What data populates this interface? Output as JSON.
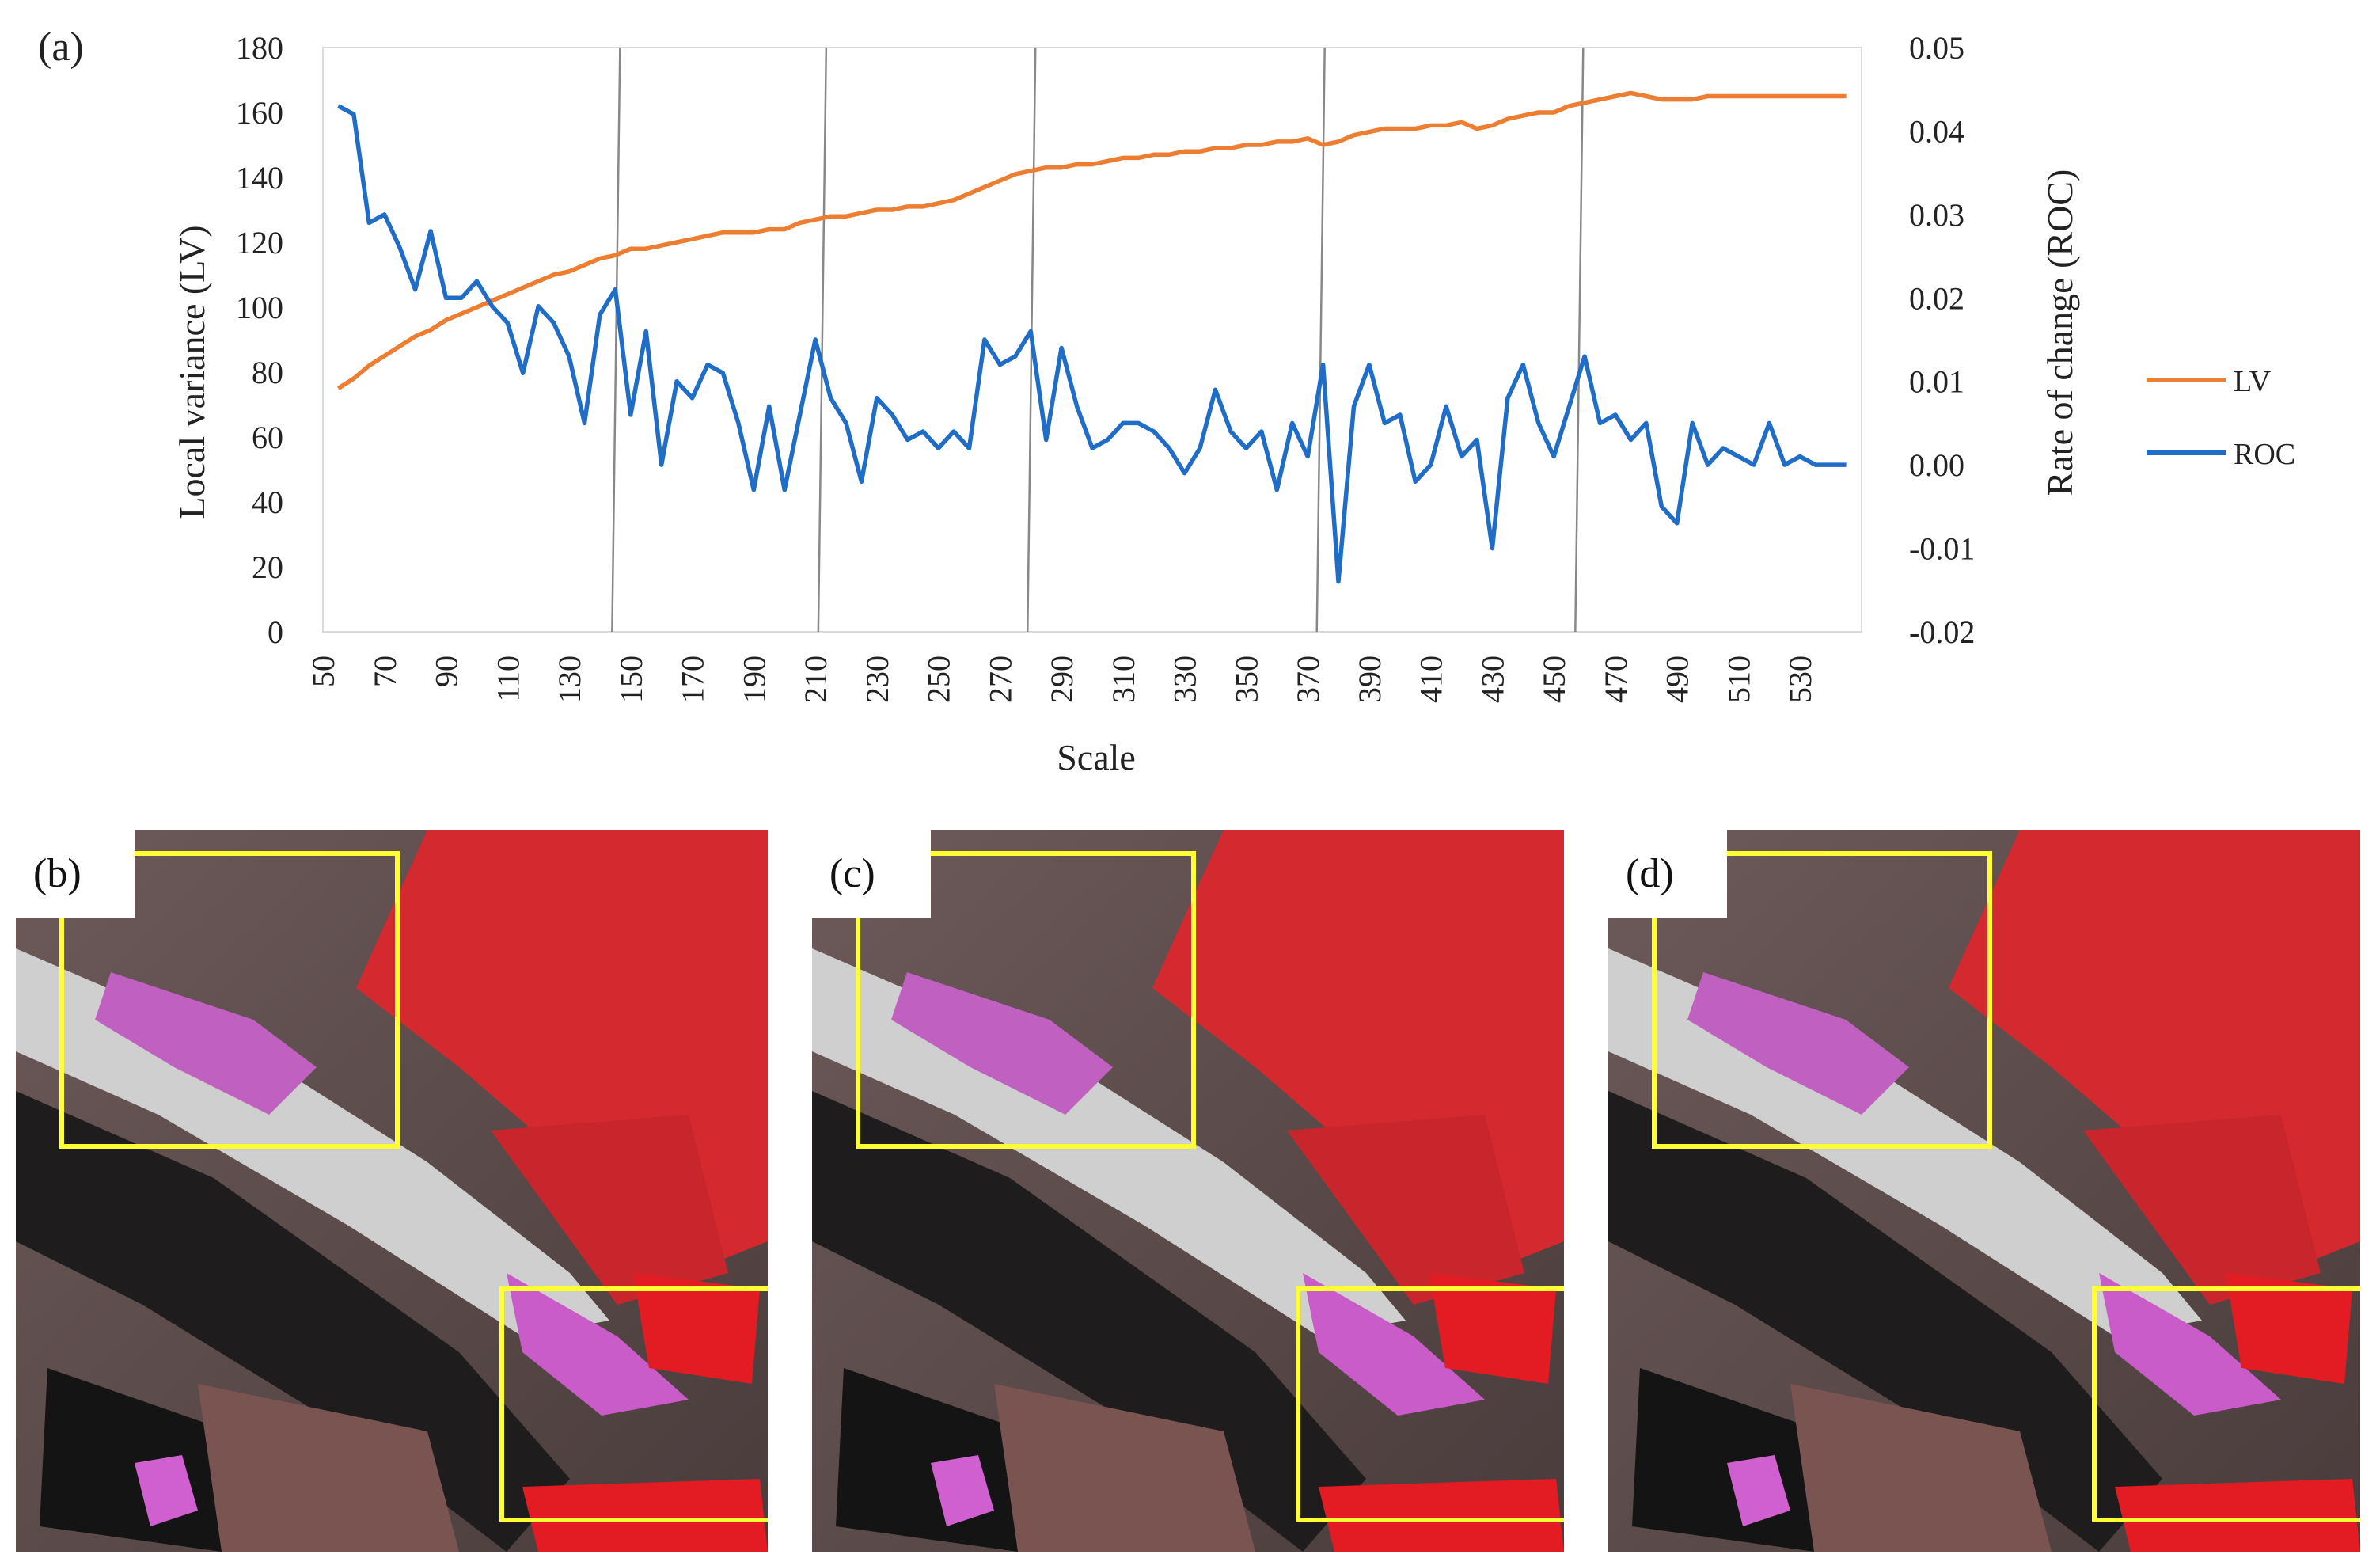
{
  "figure": {
    "panel_labels": [
      "(a)",
      "(b)",
      "(c)",
      "(d)"
    ]
  },
  "chart_data": {
    "type": "line",
    "title": "",
    "xlabel": "Scale",
    "ylabel": "Local variance (LV)",
    "ylabel_right": "Rate of change (ROC)",
    "x": [
      55,
      60,
      65,
      70,
      75,
      80,
      85,
      90,
      95,
      100,
      105,
      110,
      115,
      120,
      125,
      130,
      135,
      140,
      145,
      150,
      155,
      160,
      165,
      170,
      175,
      180,
      185,
      190,
      195,
      200,
      205,
      210,
      215,
      220,
      225,
      230,
      235,
      240,
      245,
      250,
      255,
      260,
      265,
      270,
      275,
      280,
      285,
      290,
      295,
      300,
      305,
      310,
      315,
      320,
      325,
      330,
      335,
      340,
      345,
      350,
      355,
      360,
      365,
      370,
      375,
      380,
      385,
      390,
      395,
      400,
      405,
      410,
      415,
      420,
      425,
      430,
      435,
      440,
      445,
      450,
      455,
      460,
      465,
      470,
      475,
      480,
      485,
      490,
      495,
      500,
      505,
      510,
      515,
      520,
      525,
      530,
      535,
      540,
      545
    ],
    "x_ticks": [
      50,
      70,
      90,
      110,
      130,
      150,
      170,
      190,
      210,
      230,
      250,
      270,
      290,
      310,
      330,
      350,
      370,
      390,
      410,
      430,
      450,
      470,
      490,
      510,
      530
    ],
    "xlim": [
      50,
      550
    ],
    "ylim": [
      0,
      180
    ],
    "y_ticks": [
      0,
      20,
      40,
      60,
      80,
      100,
      120,
      140,
      160,
      180
    ],
    "ylim_right": [
      -0.02,
      0.05
    ],
    "y_ticks_right": [
      "-0.02",
      "-0.01",
      "0.00",
      "0.01",
      "0.02",
      "0.03",
      "0.04",
      "0.05"
    ],
    "vlines": [
      145,
      212,
      280,
      374,
      458
    ],
    "series": [
      {
        "name": "LV",
        "axis": "left",
        "color": "#ED7D31",
        "values": [
          75,
          78,
          82,
          85,
          88,
          91,
          93,
          96,
          98,
          100,
          102,
          104,
          106,
          108,
          110,
          111,
          113,
          115,
          116,
          118,
          118,
          119,
          120,
          121,
          122,
          123,
          123,
          123,
          124,
          124,
          126,
          127,
          128,
          128,
          129,
          130,
          130,
          131,
          131,
          132,
          133,
          135,
          137,
          139,
          141,
          142,
          143,
          143,
          144,
          144,
          145,
          146,
          146,
          147,
          147,
          148,
          148,
          149,
          149,
          150,
          150,
          151,
          151,
          152,
          150,
          151,
          153,
          154,
          155,
          155,
          155,
          156,
          156,
          157,
          155,
          156,
          158,
          159,
          160,
          160,
          162,
          163,
          164,
          165,
          166,
          165,
          164,
          164,
          164,
          165,
          165,
          165,
          165,
          165,
          165,
          165,
          165,
          165,
          165
        ]
      },
      {
        "name": "ROC",
        "axis": "right",
        "color": "#1F6DC6",
        "values": [
          0.043,
          0.042,
          0.029,
          0.03,
          0.026,
          0.021,
          0.028,
          0.02,
          0.02,
          0.022,
          0.019,
          0.017,
          0.011,
          0.019,
          0.017,
          0.013,
          0.005,
          0.018,
          0.021,
          0.006,
          0.016,
          0.0,
          0.01,
          0.008,
          0.012,
          0.011,
          0.005,
          -0.003,
          0.007,
          -0.003,
          0.006,
          0.015,
          0.008,
          0.005,
          -0.002,
          0.008,
          0.006,
          0.003,
          0.004,
          0.002,
          0.004,
          0.002,
          0.015,
          0.012,
          0.013,
          0.016,
          0.003,
          0.014,
          0.007,
          0.002,
          0.003,
          0.005,
          0.005,
          0.004,
          0.002,
          -0.001,
          0.002,
          0.009,
          0.004,
          0.002,
          0.004,
          -0.003,
          0.005,
          0.001,
          0.012,
          -0.014,
          0.007,
          0.012,
          0.005,
          0.006,
          -0.002,
          0.0,
          0.007,
          0.001,
          0.003,
          -0.01,
          0.008,
          0.012,
          0.005,
          0.001,
          0.007,
          0.013,
          0.005,
          0.006,
          0.003,
          0.005,
          -0.005,
          -0.007,
          0.005,
          0.0,
          0.002,
          0.001,
          0.0,
          0.005,
          0.0,
          0.001,
          0.0,
          0.0,
          0.0
        ]
      }
    ]
  }
}
